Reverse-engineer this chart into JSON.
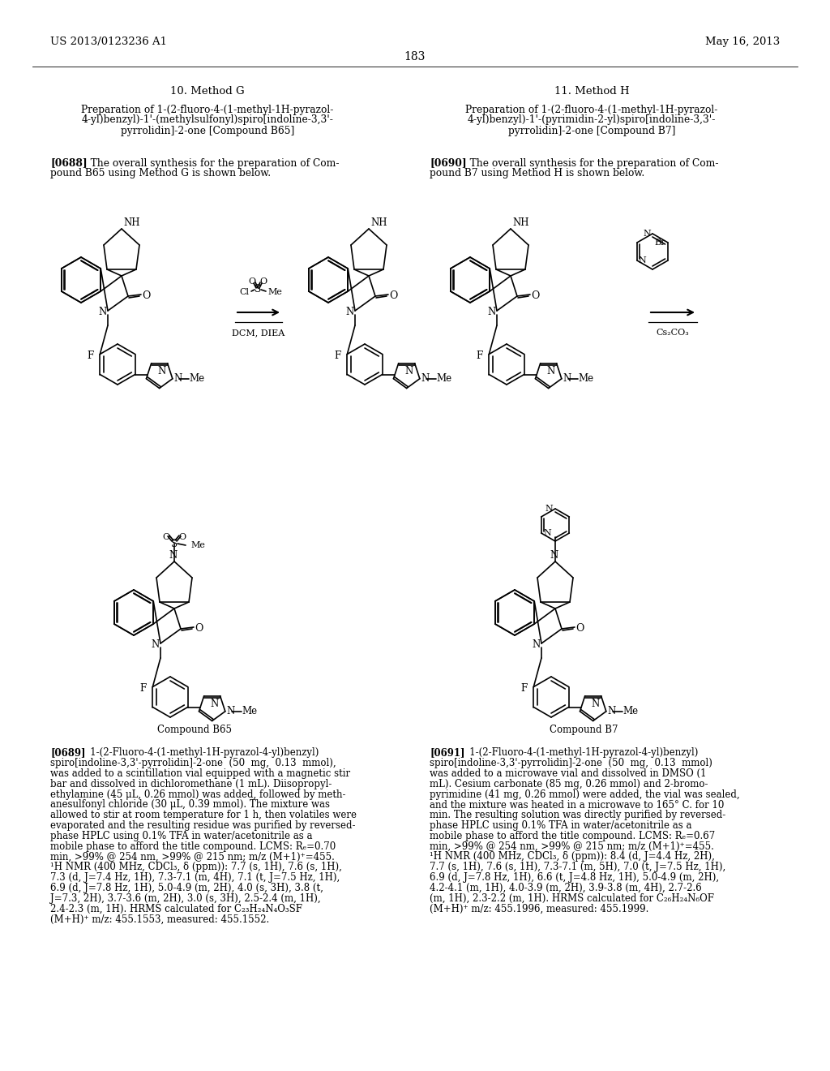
{
  "background_color": "#ffffff",
  "page_number": "183",
  "header_left": "US 2013/0123236 A1",
  "header_right": "May 16, 2013",
  "section_left_title": "10. Method G",
  "section_right_title": "11. Method H",
  "section_left_prep_line1": "Preparation of 1-(2-fluoro-4-(1-methyl-1H-pyrazol-",
  "section_left_prep_line2": "4-yl)benzyl)-1'-(methylsulfonyl)spiro[indoline-3,3'-",
  "section_left_prep_line3": "pyrrolidin]-2-one [Compound B65]",
  "section_right_prep_line1": "Preparation of 1-(2-fluoro-4-(1-methyl-1H-pyrazol-",
  "section_right_prep_line2": "4-yl)benzyl)-1'-(pyrimidin-2-yl)spiro[indoline-3,3'-",
  "section_right_prep_line3": "pyrrolidin]-2-one [Compound B7]",
  "para_688_bold": "[0688]",
  "para_688_rest": "   The overall synthesis for the preparation of Com-",
  "para_688_line2": "pound B65 using Method G is shown below.",
  "para_690_bold": "[0690]",
  "para_690_rest": "   The overall synthesis for the preparation of Com-",
  "para_690_line2": "pound B7 using Method H is shown below.",
  "reagent_left_line1": "O    O",
  "reagent_left_line2": "Cl       Me",
  "reagent_left_line3": "DCM, DIEA",
  "reagent_right_line1": "Br",
  "reagent_right_line2": "Cs₂CO₃",
  "compound_b65_label": "Compound B65",
  "compound_b7_label": "Compound B7",
  "para_689_bold": "[0689]",
  "para_689_lines": [
    "   1-(2-Fluoro-4-(1-methyl-1H-pyrazol-4-yl)benzyl)",
    "spiro[indoline-3,3'-pyrrolidin]-2-one  (50  mg,  0.13  mmol),",
    "was added to a scintillation vial equipped with a magnetic stir",
    "bar and dissolved in dichloromethane (1 mL). Diisopropyl-",
    "ethylamine (45 μL, 0.26 mmol) was added, followed by meth-",
    "anesulfonyl chloride (30 μL, 0.39 mmol). The mixture was",
    "allowed to stir at room temperature for 1 h, then volatiles were",
    "evaporated and the resulting residue was purified by reversed-",
    "phase HPLC using 0.1% TFA in water/acetonitrile as a",
    "mobile phase to afford the title compound. LCMS: Rₑ=0.70",
    "min, >99% @ 254 nm, >99% @ 215 nm; m/z (M+1)⁺=455.",
    "¹H NMR (400 MHz, CDCl₃, δ (ppm)): 7.7 (s, 1H), 7.6 (s, 1H),",
    "7.3 (d, J=7.4 Hz, 1H), 7.3-7.1 (m, 4H), 7.1 (t, J=7.5 Hz, 1H),",
    "6.9 (d, J=7.8 Hz, 1H), 5.0-4.9 (m, 2H), 4.0 (s, 3H), 3.8 (t,",
    "J=7.3, 2H), 3.7-3.6 (m, 2H), 3.0 (s, 3H), 2.5-2.4 (m, 1H),",
    "2.4-2.3 (m, 1H). HRMS calculated for C₂₃H₂₄N₄O₃SF",
    "(M+H)⁺ m/z: 455.1553, measured: 455.1552."
  ],
  "para_691_bold": "[0691]",
  "para_691_lines": [
    "   1-(2-Fluoro-4-(1-methyl-1H-pyrazol-4-yl)benzyl)",
    "spiro[indoline-3,3'-pyrrolidin]-2-one  (50  mg,  0.13  mmol)",
    "was added to a microwave vial and dissolved in DMSO (1",
    "mL). Cesium carbonate (85 mg, 0.26 mmol) and 2-bromo-",
    "pyrimidine (41 mg, 0.26 mmol) were added, the vial was sealed,",
    "and the mixture was heated in a microwave to 165° C. for 10",
    "min. The resulting solution was directly purified by reversed-",
    "phase HPLC using 0.1% TFA in water/acetonitrile as a",
    "mobile phase to afford the title compound. LCMS: Rₑ=0.67",
    "min, >99% @ 254 nm, >99% @ 215 nm; m/z (M+1)⁺=455.",
    "¹H NMR (400 MHz, CDCl₃, δ (ppm)): 8.4 (d, J=4.4 Hz, 2H),",
    "7.7 (s, 1H), 7.6 (s, 1H), 7.3-7.1 (m, 5H), 7.0 (t, J=7.5 Hz, 1H),",
    "6.9 (d, J=7.8 Hz, 1H), 6.6 (t, J=4.8 Hz, 1H), 5.0-4.9 (m, 2H),",
    "4.2-4.1 (m, 1H), 4.0-3.9 (m, 2H), 3.9-3.8 (m, 4H), 2.7-2.6",
    "(m, 1H), 2.3-2.2 (m, 1H). HRMS calculated for C₂₆H₂₄N₆OF",
    "(M+H)⁺ m/z: 455.1996, measured: 455.1999."
  ]
}
